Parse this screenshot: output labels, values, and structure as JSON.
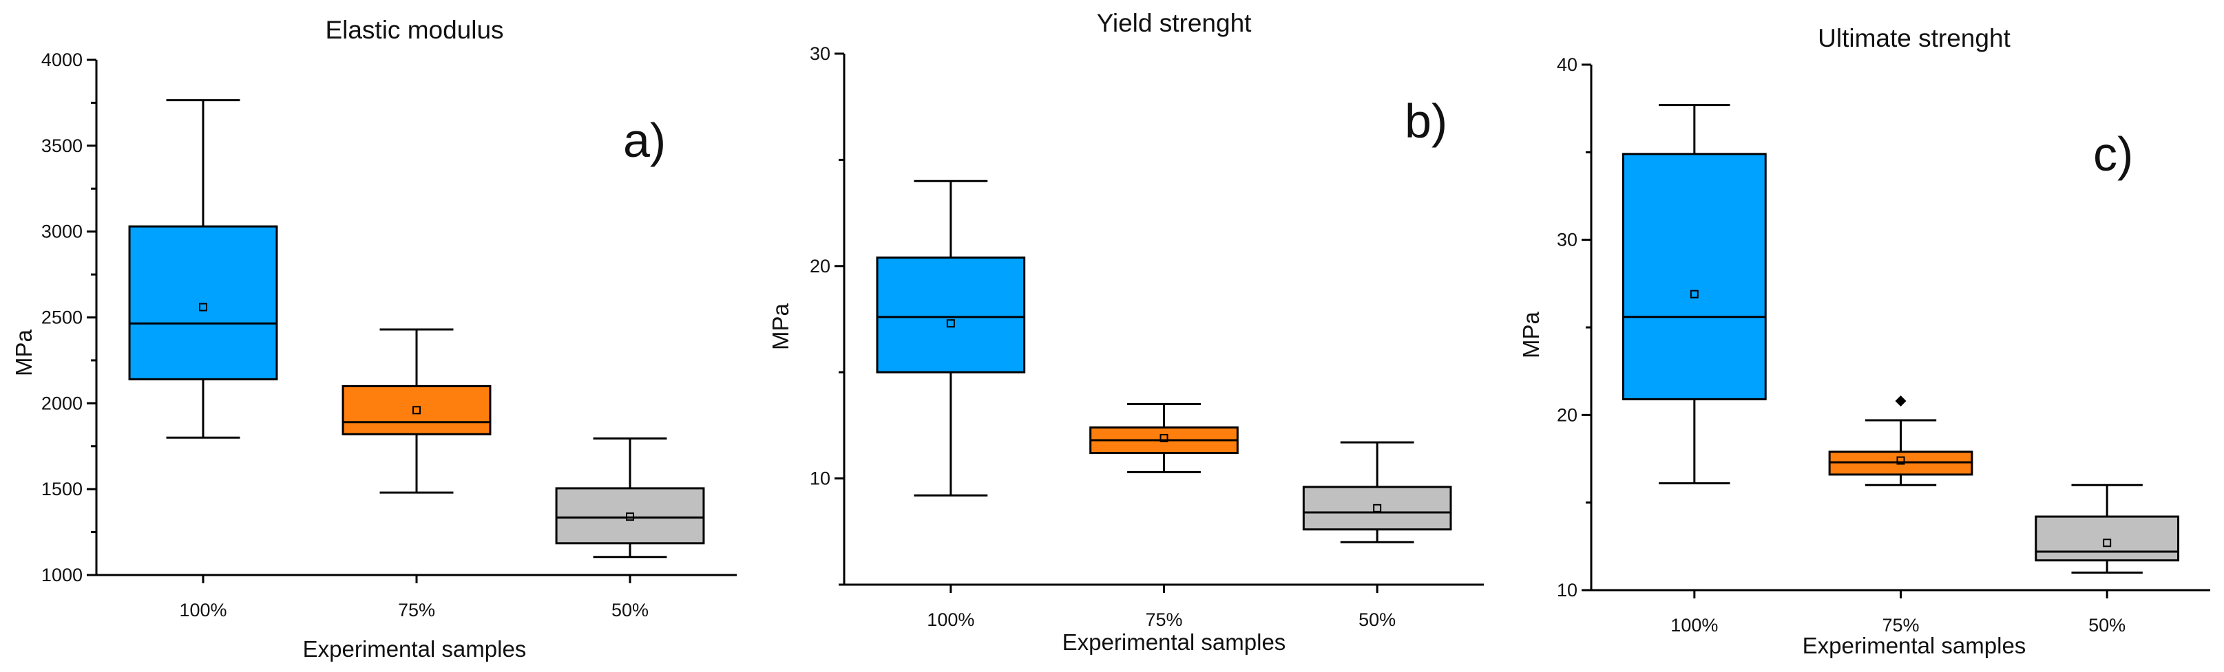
{
  "figure": {
    "panels": [
      "elastic_modulus",
      "yield_strength",
      "ultimate_strength"
    ]
  },
  "colors": {
    "100%": "#00a2ff",
    "75%": "#ff7f0e",
    "50%": "#c0c0c0",
    "axis": "#000000",
    "whisker": "#000000"
  },
  "chart_data": [
    {
      "type": "box",
      "id": "elastic_modulus",
      "title": "Elastic modulus",
      "panel_label": "a)",
      "xlabel": "Experimental samples",
      "ylabel": "MPa",
      "ylim": [
        1000,
        4000
      ],
      "yticks": [
        1000,
        1500,
        2000,
        2500,
        3000,
        3500,
        4000
      ],
      "categories": [
        "100%",
        "75%",
        "50%"
      ],
      "boxes": [
        {
          "category": "100%",
          "min": 1800,
          "q1": 2140,
          "median": 2465,
          "q3": 3030,
          "max": 3765,
          "mean": 2560,
          "outliers": []
        },
        {
          "category": "75%",
          "min": 1480,
          "q1": 1820,
          "median": 1890,
          "q3": 2100,
          "max": 2430,
          "mean": 1960,
          "outliers": []
        },
        {
          "category": "50%",
          "min": 1105,
          "q1": 1185,
          "median": 1335,
          "q3": 1505,
          "max": 1795,
          "mean": 1340,
          "outliers": []
        }
      ]
    },
    {
      "type": "box",
      "id": "yield_strength",
      "title": "Yield strenght",
      "panel_label": "b)",
      "xlabel": "Experimental samples",
      "ylabel": "MPa",
      "ylim": [
        5,
        30
      ],
      "yticks": [
        10,
        20,
        30
      ],
      "categories": [
        "100%",
        "75%",
        "50%"
      ],
      "boxes": [
        {
          "category": "100%",
          "min": 9.2,
          "q1": 15.0,
          "median": 17.6,
          "q3": 20.4,
          "max": 24.0,
          "mean": 17.3,
          "outliers": []
        },
        {
          "category": "75%",
          "min": 10.3,
          "q1": 11.2,
          "median": 11.8,
          "q3": 12.4,
          "max": 13.5,
          "mean": 11.9,
          "outliers": []
        },
        {
          "category": "50%",
          "min": 7.0,
          "q1": 7.6,
          "median": 8.4,
          "q3": 9.6,
          "max": 11.7,
          "mean": 8.6,
          "outliers": []
        }
      ]
    },
    {
      "type": "box",
      "id": "ultimate_strength",
      "title": "Ultimate strenght",
      "panel_label": "c)",
      "xlabel": "Experimental samples",
      "ylabel": "MPa",
      "ylim": [
        10,
        40
      ],
      "yticks": [
        10,
        20,
        30,
        40
      ],
      "categories": [
        "100%",
        "75%",
        "50%"
      ],
      "boxes": [
        {
          "category": "100%",
          "min": 16.1,
          "q1": 20.9,
          "median": 25.6,
          "q3": 34.9,
          "max": 37.7,
          "mean": 26.9,
          "outliers": []
        },
        {
          "category": "75%",
          "min": 16.0,
          "q1": 16.6,
          "median": 17.3,
          "q3": 17.9,
          "max": 19.7,
          "mean": 17.4,
          "outliers": [
            20.8
          ]
        },
        {
          "category": "50%",
          "min": 11.0,
          "q1": 11.7,
          "median": 12.2,
          "q3": 14.2,
          "max": 16.0,
          "mean": 12.7,
          "outliers": []
        }
      ]
    }
  ]
}
